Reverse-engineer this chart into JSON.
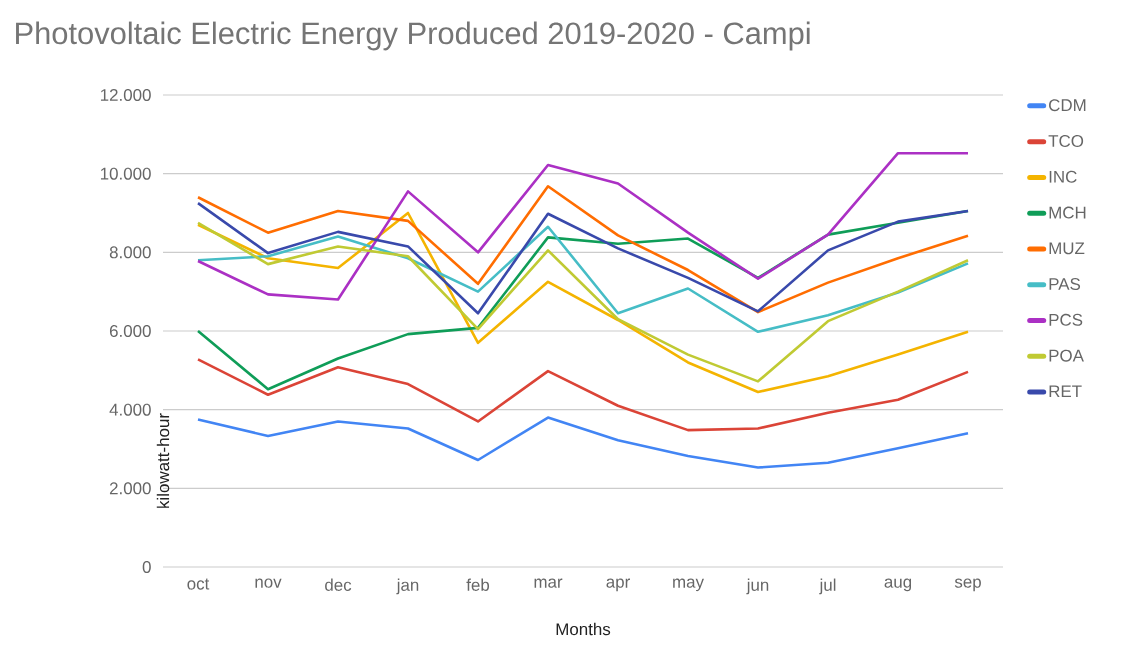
{
  "chart_data": {
    "type": "line",
    "title": "Photovoltaic Electric Energy Produced 2019-2020 - Campi",
    "xlabel": "Months",
    "ylabel": "kilowatt-hour",
    "categories": [
      "oct",
      "nov",
      "dec",
      "jan",
      "feb",
      "mar",
      "apr",
      "may",
      "jun",
      "jul",
      "aug",
      "sep"
    ],
    "ylim": [
      0,
      12000
    ],
    "yticks": [
      {
        "value": 0,
        "label": "0"
      },
      {
        "value": 2000,
        "label": "2.000"
      },
      {
        "value": 4000,
        "label": "4.000"
      },
      {
        "value": 6000,
        "label": "6.000"
      },
      {
        "value": 8000,
        "label": "8.000"
      },
      {
        "value": 10000,
        "label": "10.000"
      },
      {
        "value": 12000,
        "label": "12.000"
      }
    ],
    "grid": "y",
    "legend": "right",
    "marker": "none",
    "line_style": "solid",
    "series": [
      {
        "name": "CDM",
        "color": "#4285f4",
        "values": [
          3750,
          3330,
          3700,
          3520,
          2720,
          3800,
          3220,
          2820,
          2530,
          2650,
          3020,
          3400
        ]
      },
      {
        "name": "TCO",
        "color": "#db4437",
        "values": [
          5280,
          4380,
          5080,
          4650,
          3700,
          4980,
          4100,
          3480,
          3520,
          3920,
          4250,
          4960
        ]
      },
      {
        "name": "INC",
        "color": "#f4b400",
        "values": [
          8700,
          7850,
          7600,
          9000,
          5700,
          7250,
          6280,
          5200,
          4450,
          4850,
          5400,
          5980
        ]
      },
      {
        "name": "MCH",
        "color": "#0f9d58",
        "values": [
          6000,
          4520,
          5300,
          5920,
          6080,
          8380,
          8220,
          8350,
          7350,
          8450,
          8750,
          9050
        ]
      },
      {
        "name": "MUZ",
        "color": "#ff6d01",
        "values": [
          9400,
          8500,
          9050,
          8800,
          7200,
          9680,
          8430,
          7550,
          6480,
          7230,
          7850,
          8420
        ]
      },
      {
        "name": "PAS",
        "color": "#46bdc6",
        "values": [
          7800,
          7900,
          8400,
          7850,
          7000,
          8650,
          6450,
          7080,
          5980,
          6400,
          6980,
          7720
        ]
      },
      {
        "name": "PCS",
        "color": "#ab30c4",
        "values": [
          7780,
          6930,
          6800,
          9550,
          8000,
          10220,
          9750,
          8500,
          7330,
          8450,
          10520,
          10520
        ]
      },
      {
        "name": "POA",
        "color": "#c0ca33",
        "values": [
          8750,
          7700,
          8150,
          7900,
          6050,
          8050,
          6300,
          5400,
          4720,
          6250,
          7000,
          7800
        ]
      },
      {
        "name": "RET",
        "color": "#3949ab",
        "values": [
          9250,
          7980,
          8520,
          8150,
          6450,
          8980,
          8100,
          7350,
          6500,
          8050,
          8780,
          9050
        ]
      }
    ]
  }
}
